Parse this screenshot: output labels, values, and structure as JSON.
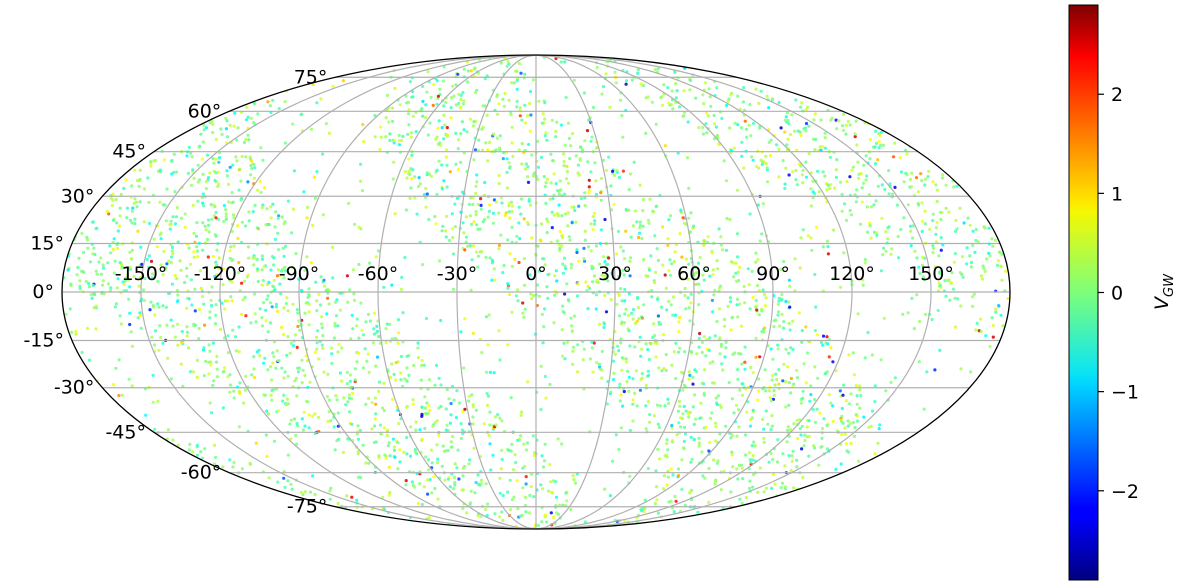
{
  "chart_data": {
    "type": "scatter",
    "projection": "mollweide",
    "grid": true,
    "lon_ticks": [
      -150,
      -120,
      -90,
      -60,
      -30,
      0,
      30,
      60,
      90,
      120,
      150
    ],
    "lon_tick_labels": [
      "-150°",
      "-120°",
      "-90°",
      "-60°",
      "-30°",
      "0°",
      "30°",
      "60°",
      "90°",
      "120°",
      "150°"
    ],
    "lat_ticks": [
      75,
      60,
      45,
      30,
      15,
      0,
      -15,
      -30,
      -45,
      -60,
      -75
    ],
    "lat_tick_labels": [
      "75°",
      "60°",
      "45°",
      "30°",
      "15°",
      "0°",
      "-15°",
      "-30°",
      "-45°",
      "-60°",
      "-75°"
    ],
    "colorbar": {
      "label": "V_GW",
      "label_main": "V",
      "label_sub": "GW",
      "range": [
        -2.9,
        2.9
      ],
      "ticks": [
        2,
        1,
        0,
        -1,
        -2
      ],
      "tick_labels": [
        "2",
        "1",
        "0",
        "−1",
        "−2"
      ],
      "colormap": "jet"
    },
    "point_value_distribution": "mostly between -0.5 and 0.6, few outliers near ±2.5",
    "colors": {
      "grid": "#b0b0b0",
      "outline": "#000000"
    }
  }
}
